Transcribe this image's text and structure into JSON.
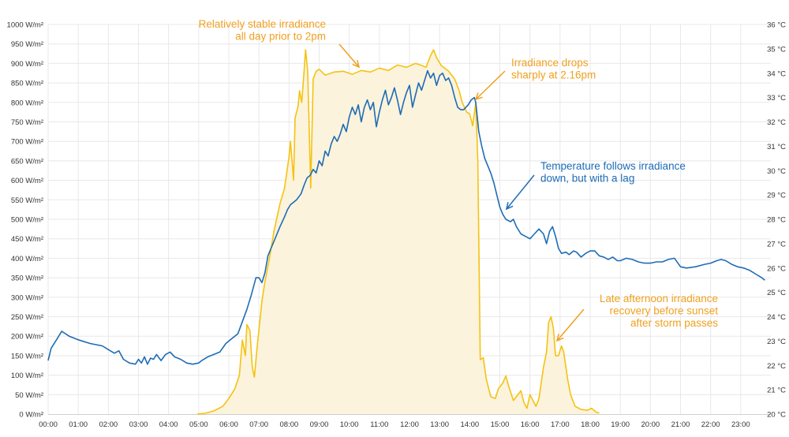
{
  "colors": {
    "irradiance": "#F5C211",
    "irradiance_fill": "#FBF3DC",
    "temperature": "#1E6CB5",
    "annotation_irradiance": "#F0A020",
    "annotation_temperature": "#1E6CB5",
    "grid": "#E8E8E8"
  },
  "chart_data": {
    "type": "line",
    "grid": true,
    "x_ticks": [
      "00:00",
      "01:00",
      "02:00",
      "03:00",
      "04:00",
      "05:00",
      "06:00",
      "07:00",
      "08:00",
      "09:00",
      "10:00",
      "11:00",
      "12:00",
      "13:00",
      "14:00",
      "15:00",
      "16:00",
      "17:00",
      "18:00",
      "19:00",
      "20:00",
      "21:00",
      "22:00",
      "23:00"
    ],
    "xlim": [
      0,
      24
    ],
    "y_left": {
      "ylim": [
        0,
        1000
      ],
      "ticks": [
        "0 W/m²",
        "50 W/m²",
        "100 W/m²",
        "150 W/m²",
        "200 W/m²",
        "250 W/m²",
        "300 W/m²",
        "350 W/m²",
        "400 W/m²",
        "450 W/m²",
        "500 W/m²",
        "550 W/m²",
        "600 W/m²",
        "650 W/m²",
        "700 W/m²",
        "750 W/m²",
        "800 W/m²",
        "850 W/m²",
        "900 W/m²",
        "950 W/m²",
        "1000 W/m²"
      ]
    },
    "y_right": {
      "ylim": [
        20,
        36
      ],
      "ticks": [
        "20 °C",
        "21 °C",
        "22 °C",
        "23 °C",
        "24 °C",
        "25 °C",
        "26 °C",
        "27 °C",
        "28 °C",
        "29 °C",
        "30 °C",
        "31 °C",
        "32 °C",
        "33 °C",
        "34 °C",
        "35 °C",
        "36 °C"
      ]
    },
    "series": [
      {
        "key": "irradiance",
        "axis": "left",
        "filled": true,
        "points": [
          [
            4.95,
            0
          ],
          [
            5.2,
            2
          ],
          [
            5.5,
            8
          ],
          [
            5.8,
            20
          ],
          [
            6.0,
            40
          ],
          [
            6.2,
            65
          ],
          [
            6.35,
            100
          ],
          [
            6.45,
            190
          ],
          [
            6.55,
            150
          ],
          [
            6.6,
            230
          ],
          [
            6.7,
            215
          ],
          [
            6.78,
            120
          ],
          [
            6.85,
            95
          ],
          [
            6.95,
            180
          ],
          [
            7.1,
            290
          ],
          [
            7.2,
            340
          ],
          [
            7.35,
            400
          ],
          [
            7.5,
            470
          ],
          [
            7.7,
            540
          ],
          [
            7.85,
            580
          ],
          [
            8.0,
            660
          ],
          [
            8.05,
            700
          ],
          [
            8.15,
            600
          ],
          [
            8.2,
            760
          ],
          [
            8.3,
            790
          ],
          [
            8.35,
            830
          ],
          [
            8.42,
            800
          ],
          [
            8.5,
            880
          ],
          [
            8.55,
            935
          ],
          [
            8.62,
            880
          ],
          [
            8.68,
            700
          ],
          [
            8.72,
            580
          ],
          [
            8.8,
            860
          ],
          [
            8.9,
            880
          ],
          [
            9.0,
            885
          ],
          [
            9.2,
            870
          ],
          [
            9.5,
            878
          ],
          [
            9.8,
            880
          ],
          [
            10.1,
            872
          ],
          [
            10.4,
            882
          ],
          [
            10.7,
            878
          ],
          [
            11.0,
            888
          ],
          [
            11.3,
            882
          ],
          [
            11.6,
            896
          ],
          [
            11.9,
            890
          ],
          [
            12.2,
            900
          ],
          [
            12.4,
            895
          ],
          [
            12.55,
            890
          ],
          [
            12.7,
            920
          ],
          [
            12.8,
            935
          ],
          [
            12.9,
            915
          ],
          [
            13.05,
            895
          ],
          [
            13.3,
            880
          ],
          [
            13.5,
            860
          ],
          [
            13.65,
            830
          ],
          [
            13.75,
            800
          ],
          [
            13.9,
            775
          ],
          [
            14.0,
            770
          ],
          [
            14.1,
            740
          ],
          [
            14.2,
            800
          ],
          [
            14.27,
            650
          ],
          [
            14.35,
            140
          ],
          [
            14.45,
            145
          ],
          [
            14.55,
            90
          ],
          [
            14.7,
            45
          ],
          [
            14.85,
            40
          ],
          [
            14.95,
            65
          ],
          [
            15.1,
            80
          ],
          [
            15.2,
            98
          ],
          [
            15.3,
            70
          ],
          [
            15.45,
            35
          ],
          [
            15.55,
            45
          ],
          [
            15.7,
            60
          ],
          [
            15.8,
            30
          ],
          [
            15.9,
            15
          ],
          [
            16.0,
            50
          ],
          [
            16.1,
            35
          ],
          [
            16.2,
            20
          ],
          [
            16.3,
            40
          ],
          [
            16.45,
            120
          ],
          [
            16.55,
            160
          ],
          [
            16.62,
            235
          ],
          [
            16.7,
            250
          ],
          [
            16.78,
            220
          ],
          [
            16.85,
            150
          ],
          [
            16.95,
            150
          ],
          [
            17.05,
            175
          ],
          [
            17.12,
            160
          ],
          [
            17.25,
            90
          ],
          [
            17.35,
            50
          ],
          [
            17.5,
            20
          ],
          [
            17.7,
            12
          ],
          [
            17.9,
            10
          ],
          [
            18.05,
            15
          ],
          [
            18.2,
            5
          ],
          [
            18.3,
            3
          ]
        ]
      },
      {
        "key": "temperature",
        "axis": "right",
        "filled": false,
        "points": [
          [
            0.0,
            22.2
          ],
          [
            0.1,
            22.7
          ],
          [
            0.3,
            23.1
          ],
          [
            0.45,
            23.4
          ],
          [
            0.7,
            23.2
          ],
          [
            1.0,
            23.05
          ],
          [
            1.4,
            22.9
          ],
          [
            1.6,
            22.85
          ],
          [
            1.8,
            22.8
          ],
          [
            2.0,
            22.65
          ],
          [
            2.2,
            22.5
          ],
          [
            2.35,
            22.6
          ],
          [
            2.5,
            22.25
          ],
          [
            2.7,
            22.1
          ],
          [
            2.9,
            22.05
          ],
          [
            3.0,
            22.25
          ],
          [
            3.1,
            22.1
          ],
          [
            3.2,
            22.35
          ],
          [
            3.3,
            22.05
          ],
          [
            3.4,
            22.3
          ],
          [
            3.5,
            22.25
          ],
          [
            3.6,
            22.45
          ],
          [
            3.75,
            22.2
          ],
          [
            3.9,
            22.45
          ],
          [
            4.05,
            22.55
          ],
          [
            4.2,
            22.35
          ],
          [
            4.4,
            22.25
          ],
          [
            4.6,
            22.1
          ],
          [
            4.8,
            22.05
          ],
          [
            5.0,
            22.1
          ],
          [
            5.1,
            22.2
          ],
          [
            5.3,
            22.35
          ],
          [
            5.5,
            22.45
          ],
          [
            5.7,
            22.55
          ],
          [
            5.9,
            22.9
          ],
          [
            6.1,
            23.1
          ],
          [
            6.3,
            23.3
          ],
          [
            6.45,
            23.8
          ],
          [
            6.6,
            24.3
          ],
          [
            6.75,
            24.9
          ],
          [
            6.9,
            25.6
          ],
          [
            7.0,
            25.6
          ],
          [
            7.1,
            25.4
          ],
          [
            7.2,
            25.8
          ],
          [
            7.3,
            26.5
          ],
          [
            7.4,
            26.8
          ],
          [
            7.5,
            27.1
          ],
          [
            7.6,
            27.4
          ],
          [
            7.7,
            27.7
          ],
          [
            7.85,
            28.1
          ],
          [
            7.95,
            28.4
          ],
          [
            8.05,
            28.6
          ],
          [
            8.15,
            28.7
          ],
          [
            8.25,
            28.8
          ],
          [
            8.4,
            29.05
          ],
          [
            8.5,
            29.4
          ],
          [
            8.6,
            29.7
          ],
          [
            8.7,
            29.8
          ],
          [
            8.8,
            30.05
          ],
          [
            8.9,
            29.9
          ],
          [
            9.0,
            30.4
          ],
          [
            9.1,
            30.2
          ],
          [
            9.2,
            30.8
          ],
          [
            9.3,
            30.6
          ],
          [
            9.4,
            31.1
          ],
          [
            9.5,
            31.4
          ],
          [
            9.6,
            31.2
          ],
          [
            9.7,
            31.5
          ],
          [
            9.8,
            31.9
          ],
          [
            9.9,
            31.6
          ],
          [
            10.0,
            32.2
          ],
          [
            10.1,
            32.6
          ],
          [
            10.2,
            32.3
          ],
          [
            10.3,
            32.7
          ],
          [
            10.4,
            32.0
          ],
          [
            10.5,
            32.6
          ],
          [
            10.6,
            32.9
          ],
          [
            10.7,
            32.5
          ],
          [
            10.8,
            32.8
          ],
          [
            10.9,
            31.8
          ],
          [
            11.0,
            32.4
          ],
          [
            11.1,
            32.9
          ],
          [
            11.2,
            33.3
          ],
          [
            11.3,
            32.7
          ],
          [
            11.4,
            33.0
          ],
          [
            11.5,
            33.4
          ],
          [
            11.6,
            32.9
          ],
          [
            11.7,
            32.3
          ],
          [
            11.8,
            32.8
          ],
          [
            11.9,
            33.2
          ],
          [
            12.0,
            33.5
          ],
          [
            12.1,
            32.6
          ],
          [
            12.2,
            33.1
          ],
          [
            12.3,
            33.6
          ],
          [
            12.4,
            33.3
          ],
          [
            12.5,
            33.7
          ],
          [
            12.6,
            34.1
          ],
          [
            12.7,
            33.8
          ],
          [
            12.8,
            34.0
          ],
          [
            12.9,
            33.5
          ],
          [
            13.0,
            33.9
          ],
          [
            13.1,
            34.0
          ],
          [
            13.2,
            33.7
          ],
          [
            13.3,
            33.8
          ],
          [
            13.4,
            33.5
          ],
          [
            13.5,
            33.0
          ],
          [
            13.6,
            32.6
          ],
          [
            13.7,
            32.5
          ],
          [
            13.8,
            32.5
          ],
          [
            13.95,
            32.7
          ],
          [
            14.05,
            32.9
          ],
          [
            14.15,
            33.0
          ],
          [
            14.2,
            32.8
          ],
          [
            14.3,
            31.6
          ],
          [
            14.4,
            31.0
          ],
          [
            14.5,
            30.5
          ],
          [
            14.6,
            30.2
          ],
          [
            14.7,
            29.9
          ],
          [
            14.8,
            29.5
          ],
          [
            14.9,
            29.0
          ],
          [
            15.0,
            28.5
          ],
          [
            15.1,
            28.2
          ],
          [
            15.2,
            28.0
          ],
          [
            15.35,
            27.9
          ],
          [
            15.45,
            28.0
          ],
          [
            15.55,
            27.7
          ],
          [
            15.7,
            27.4
          ],
          [
            15.85,
            27.3
          ],
          [
            16.0,
            27.2
          ],
          [
            16.15,
            27.4
          ],
          [
            16.3,
            27.6
          ],
          [
            16.45,
            27.4
          ],
          [
            16.55,
            27.0
          ],
          [
            16.65,
            27.5
          ],
          [
            16.75,
            27.7
          ],
          [
            16.85,
            27.3
          ],
          [
            16.95,
            26.8
          ],
          [
            17.05,
            26.6
          ],
          [
            17.2,
            26.65
          ],
          [
            17.3,
            26.55
          ],
          [
            17.45,
            26.7
          ],
          [
            17.55,
            26.65
          ],
          [
            17.7,
            26.45
          ],
          [
            17.85,
            26.6
          ],
          [
            18.0,
            26.7
          ],
          [
            18.15,
            26.7
          ],
          [
            18.3,
            26.5
          ],
          [
            18.45,
            26.45
          ],
          [
            18.6,
            26.35
          ],
          [
            18.75,
            26.45
          ],
          [
            18.9,
            26.3
          ],
          [
            19.0,
            26.3
          ],
          [
            19.2,
            26.4
          ],
          [
            19.4,
            26.35
          ],
          [
            19.6,
            26.25
          ],
          [
            19.8,
            26.2
          ],
          [
            20.0,
            26.2
          ],
          [
            20.2,
            26.25
          ],
          [
            20.4,
            26.25
          ],
          [
            20.6,
            26.35
          ],
          [
            20.8,
            26.4
          ],
          [
            21.0,
            26.05
          ],
          [
            21.2,
            26.0
          ],
          [
            21.5,
            26.05
          ],
          [
            21.8,
            26.15
          ],
          [
            22.0,
            26.2
          ],
          [
            22.2,
            26.3
          ],
          [
            22.35,
            26.35
          ],
          [
            22.5,
            26.3
          ],
          [
            22.7,
            26.15
          ],
          [
            22.9,
            26.05
          ],
          [
            23.1,
            26.0
          ],
          [
            23.3,
            25.9
          ],
          [
            23.5,
            25.75
          ],
          [
            23.7,
            25.6
          ],
          [
            23.8,
            25.5
          ]
        ]
      }
    ],
    "annotations": [
      {
        "color_key": "annotation_irradiance",
        "lines": [
          "Relatively stable irradiance",
          "all day prior to 2pm"
        ]
      },
      {
        "color_key": "annotation_irradiance",
        "lines": [
          "Irradiance drops",
          "sharply at 2.16pm"
        ]
      },
      {
        "color_key": "annotation_temperature",
        "lines": [
          "Temperature follows irradiance",
          "down, but with a lag"
        ]
      },
      {
        "color_key": "annotation_irradiance",
        "lines": [
          "Late afternoon irradiance",
          "recovery before sunset",
          "after storm passes"
        ]
      }
    ]
  }
}
